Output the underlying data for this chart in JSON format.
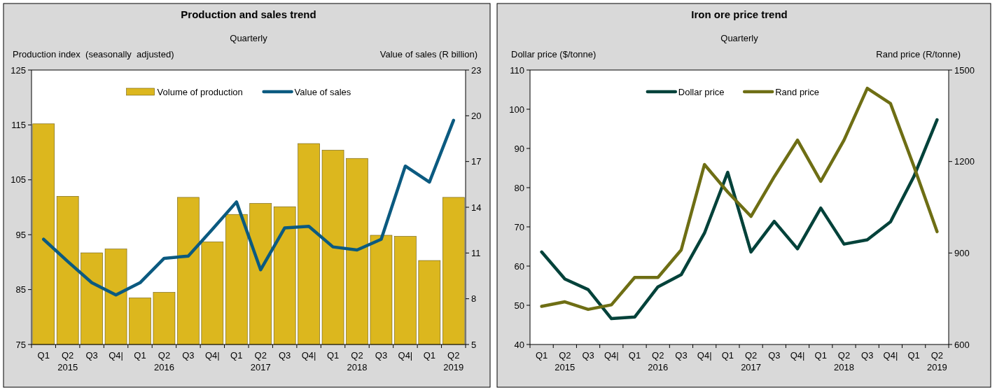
{
  "chart_data": [
    {
      "type": "bar",
      "title": "Production and sales trend",
      "subtitle": "Quarterly",
      "ylabel": "Production index  (seasonally  adjusted)",
      "y2label": "Value of sales (R billion)",
      "categories": [
        "Q1",
        "Q2\n2015",
        "Q3",
        "Q4|",
        "Q1",
        "Q2\n2016",
        "Q3",
        "Q4|",
        "Q1",
        "Q2\n2017",
        "Q3",
        "Q4|",
        "Q1",
        "Q2\n2018",
        "Q3",
        "Q4|",
        "Q1",
        "Q2\n2019"
      ],
      "series": [
        {
          "name": "Volume of production",
          "color": "#dcb71e",
          "values": [
            115.2,
            102.0,
            91.7,
            92.4,
            83.5,
            84.5,
            101.8,
            93.7,
            98.7,
            100.7,
            100.1,
            111.6,
            110.4,
            108.9,
            94.9,
            94.7,
            90.3,
            101.8
          ]
        },
        {
          "name": "Value of sales",
          "type": "line",
          "axis": "y2",
          "color": "#0b5a80",
          "values": [
            11.9,
            10.45,
            9.05,
            8.25,
            9.05,
            10.65,
            10.8,
            12.55,
            14.35,
            9.9,
            12.65,
            12.75,
            11.4,
            11.2,
            11.9,
            16.7,
            15.65,
            19.7
          ]
        }
      ],
      "ylim": [
        75,
        125
      ],
      "yticks": [
        75,
        85,
        95,
        105,
        115,
        125
      ],
      "y2lim": [
        5,
        23
      ],
      "y2ticks": [
        5,
        8,
        11,
        14,
        17,
        20,
        23
      ],
      "legend": "top"
    },
    {
      "type": "line",
      "title": "Iron ore price trend",
      "subtitle": "Quarterly",
      "ylabel": "Dollar price ($/tonne)",
      "y2label": "Rand price (R/tonne)",
      "categories": [
        "Q1",
        "Q2\n2015",
        "Q3",
        "Q4|",
        "Q1",
        "Q2\n2016",
        "Q3",
        "Q4|",
        "Q1",
        "Q2\n2017",
        "Q3",
        "Q4|",
        "Q1",
        "Q2\n2018",
        "Q3",
        "Q4|",
        "Q1",
        "Q2\n2019"
      ],
      "series": [
        {
          "name": "Dollar price",
          "color": "#03423a",
          "values": [
            63.6,
            56.7,
            54.0,
            46.6,
            47.0,
            54.7,
            57.8,
            68.4,
            83.9,
            63.6,
            71.4,
            64.4,
            74.8,
            65.6,
            66.7,
            71.3,
            82.8,
            97.3
          ]
        },
        {
          "name": "Rand price",
          "axis": "y2",
          "color": "#6e6e14",
          "values": [
            725,
            740,
            715,
            730,
            820,
            820,
            910,
            1190,
            1100,
            1020,
            1150,
            1270,
            1135,
            1270,
            1440,
            1390,
            1185,
            970
          ]
        }
      ],
      "ylim": [
        40,
        110
      ],
      "yticks": [
        40,
        50,
        60,
        70,
        80,
        90,
        100,
        110
      ],
      "y2lim": [
        600,
        1500
      ],
      "y2ticks": [
        600,
        900,
        1200,
        1500
      ],
      "legend": "top"
    }
  ]
}
